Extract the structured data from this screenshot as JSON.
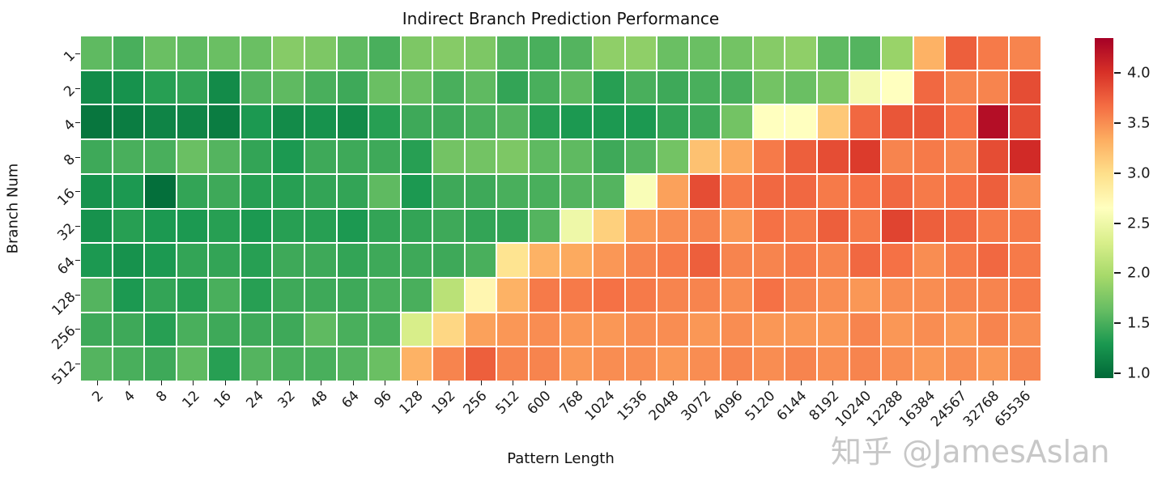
{
  "title": "Indirect Branch Prediction Performance",
  "watermark": "知乎 @JamesAslan",
  "chart_data": {
    "type": "heatmap",
    "title": "Indirect Branch Prediction Performance",
    "xlabel": "Pattern Length",
    "ylabel": "Branch Num",
    "x_categories": [
      "2",
      "4",
      "8",
      "12",
      "16",
      "24",
      "32",
      "48",
      "64",
      "96",
      "128",
      "192",
      "256",
      "512",
      "600",
      "768",
      "1024",
      "1536",
      "2048",
      "3072",
      "4096",
      "5120",
      "6144",
      "8192",
      "10240",
      "12288",
      "16384",
      "24567",
      "32768",
      "65536"
    ],
    "y_categories": [
      "1",
      "2",
      "4",
      "8",
      "16",
      "32",
      "64",
      "128",
      "256",
      "512"
    ],
    "values": [
      [
        1.6,
        1.5,
        1.65,
        1.6,
        1.65,
        1.65,
        1.8,
        1.75,
        1.6,
        1.5,
        1.75,
        1.8,
        1.75,
        1.55,
        1.5,
        1.55,
        1.85,
        1.85,
        1.65,
        1.65,
        1.7,
        1.8,
        1.85,
        1.6,
        1.55,
        1.9,
        3.3,
        3.75,
        3.6,
        3.55
      ],
      [
        1.2,
        1.25,
        1.35,
        1.4,
        1.2,
        1.55,
        1.6,
        1.5,
        1.45,
        1.65,
        1.65,
        1.5,
        1.6,
        1.4,
        1.5,
        1.6,
        1.35,
        1.5,
        1.45,
        1.5,
        1.5,
        1.7,
        1.65,
        1.75,
        2.55,
        2.65,
        3.7,
        3.55,
        3.55,
        3.85
      ],
      [
        1.05,
        1.1,
        1.15,
        1.15,
        1.1,
        1.3,
        1.2,
        1.25,
        1.2,
        1.35,
        1.45,
        1.45,
        1.5,
        1.55,
        1.35,
        1.3,
        1.3,
        1.3,
        1.4,
        1.45,
        1.7,
        2.65,
        2.65,
        3.15,
        3.7,
        3.8,
        3.8,
        3.65,
        4.25,
        3.85
      ],
      [
        1.45,
        1.5,
        1.5,
        1.65,
        1.55,
        1.4,
        1.3,
        1.45,
        1.45,
        1.45,
        1.35,
        1.7,
        1.7,
        1.75,
        1.6,
        1.6,
        1.45,
        1.55,
        1.7,
        3.2,
        3.35,
        3.6,
        3.75,
        3.85,
        3.95,
        3.55,
        3.6,
        3.55,
        3.85,
        4.05
      ],
      [
        1.25,
        1.3,
        1.0,
        1.4,
        1.45,
        1.35,
        1.35,
        1.4,
        1.4,
        1.6,
        1.3,
        1.45,
        1.45,
        1.5,
        1.5,
        1.55,
        1.55,
        2.6,
        3.4,
        3.85,
        3.6,
        3.7,
        3.7,
        3.6,
        3.65,
        3.7,
        3.6,
        3.65,
        3.75,
        3.5
      ],
      [
        1.25,
        1.35,
        1.3,
        1.3,
        1.35,
        1.3,
        1.35,
        1.35,
        1.3,
        1.4,
        1.4,
        1.45,
        1.4,
        1.4,
        1.55,
        2.5,
        3.1,
        3.45,
        3.5,
        3.55,
        3.45,
        3.65,
        3.6,
        3.75,
        3.6,
        3.9,
        3.75,
        3.7,
        3.6,
        3.6
      ],
      [
        1.3,
        1.25,
        1.3,
        1.4,
        1.4,
        1.35,
        1.45,
        1.45,
        1.4,
        1.45,
        1.45,
        1.45,
        1.5,
        2.95,
        3.3,
        3.35,
        3.45,
        3.55,
        3.6,
        3.75,
        3.55,
        3.55,
        3.6,
        3.55,
        3.7,
        3.65,
        3.5,
        3.6,
        3.7,
        3.6
      ],
      [
        1.55,
        1.3,
        1.4,
        1.35,
        1.5,
        1.35,
        1.45,
        1.45,
        1.45,
        1.5,
        1.5,
        2.1,
        2.75,
        3.3,
        3.6,
        3.6,
        3.65,
        3.6,
        3.55,
        3.55,
        3.5,
        3.65,
        3.55,
        3.5,
        3.45,
        3.5,
        3.5,
        3.55,
        3.55,
        3.6
      ],
      [
        1.45,
        1.45,
        1.35,
        1.5,
        1.45,
        1.45,
        1.45,
        1.6,
        1.5,
        1.5,
        2.3,
        3.05,
        3.4,
        3.45,
        3.5,
        3.45,
        3.45,
        3.5,
        3.5,
        3.45,
        3.5,
        3.45,
        3.45,
        3.45,
        3.55,
        3.45,
        3.5,
        3.45,
        3.55,
        3.5
      ],
      [
        1.55,
        1.5,
        1.45,
        1.6,
        1.35,
        1.55,
        1.5,
        1.5,
        1.55,
        1.65,
        3.3,
        3.55,
        3.75,
        3.55,
        3.55,
        3.45,
        3.5,
        3.5,
        3.45,
        3.5,
        3.55,
        3.5,
        3.55,
        3.5,
        3.55,
        3.5,
        3.45,
        3.5,
        3.45,
        3.55
      ]
    ],
    "colormap": "RdYlGn_r",
    "colormap_anchors_low_to_high": [
      "#006837",
      "#1a9850",
      "#66bd63",
      "#a6d96a",
      "#d9ef8b",
      "#ffffbf",
      "#fee08b",
      "#fdae61",
      "#f46d43",
      "#d73027",
      "#a50026"
    ],
    "vmin": 0.95,
    "vmax": 4.35,
    "colorbar_tick_values": [
      4.0,
      3.5,
      3.0,
      2.5,
      2.0,
      1.5,
      1.0
    ],
    "colorbar_tick_labels": [
      "4.0",
      "3.5",
      "3.0",
      "2.5",
      "2.0",
      "1.5",
      "1.0"
    ],
    "legend_position": "right",
    "grid_line_color": "#ffffff"
  },
  "layout_text": {
    "note": ""
  }
}
